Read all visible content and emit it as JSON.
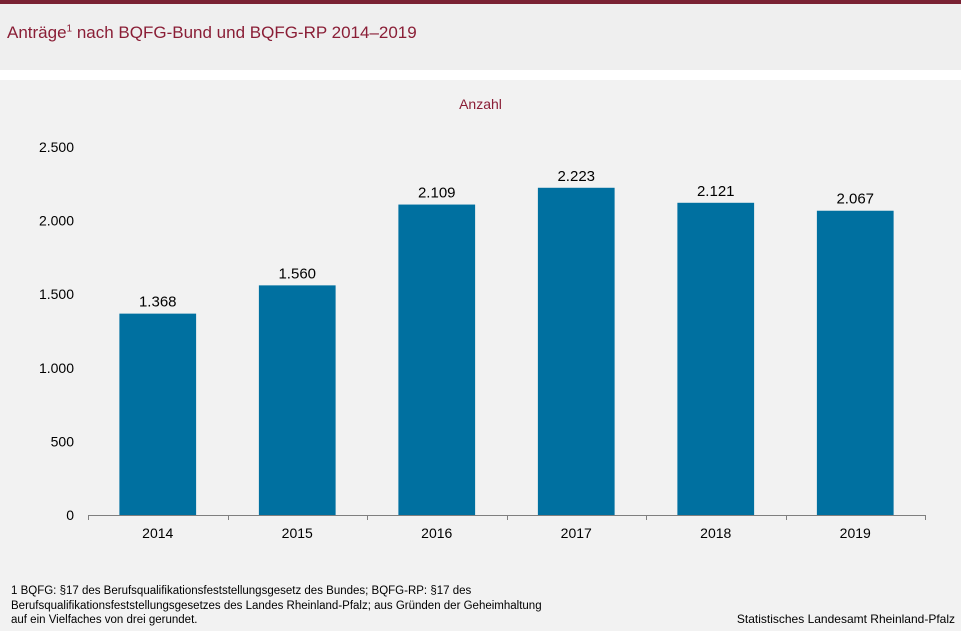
{
  "header": {
    "title": "Anträge",
    "title_superscript": "1",
    "title_rest": " nach BQFG-Bund und BQFG-RP 2014–2019"
  },
  "colors": {
    "bar": "#0070a0",
    "title": "#8a1e36",
    "top_bar": "#7a2233",
    "chart_background": "#f2f2f2"
  },
  "chart_data": {
    "type": "bar",
    "title": "Anträge¹ nach BQFG-Bund und BQFG-RP 2014–2019",
    "unit_label": "Anzahl",
    "categories": [
      "2014",
      "2015",
      "2016",
      "2017",
      "2018",
      "2019"
    ],
    "values": [
      1368,
      1560,
      2109,
      2223,
      2121,
      2067
    ],
    "value_labels": [
      "1.368",
      "1.560",
      "2.109",
      "2.223",
      "2.121",
      "2.067"
    ],
    "ylim": [
      0,
      2500
    ],
    "yticks": [
      0,
      500,
      1000,
      1500,
      2000,
      2500
    ],
    "ytick_labels": [
      "0",
      "500",
      "1.000",
      "1.500",
      "2.000",
      "2.500"
    ],
    "grid": false,
    "legend": "none"
  },
  "footer": {
    "footnote": "1 BQFG: §17 des Berufsqualifikationsfeststellungsgesetz des Bundes; BQFG-RP: §17 des Berufsqualifikationsfeststellungsgesetzes des Landes Rheinland-Pfalz; aus Gründen der Geheimhaltung auf ein Vielfaches von drei gerundet.",
    "source": "Statistisches Landesamt Rheinland-Pfalz"
  }
}
